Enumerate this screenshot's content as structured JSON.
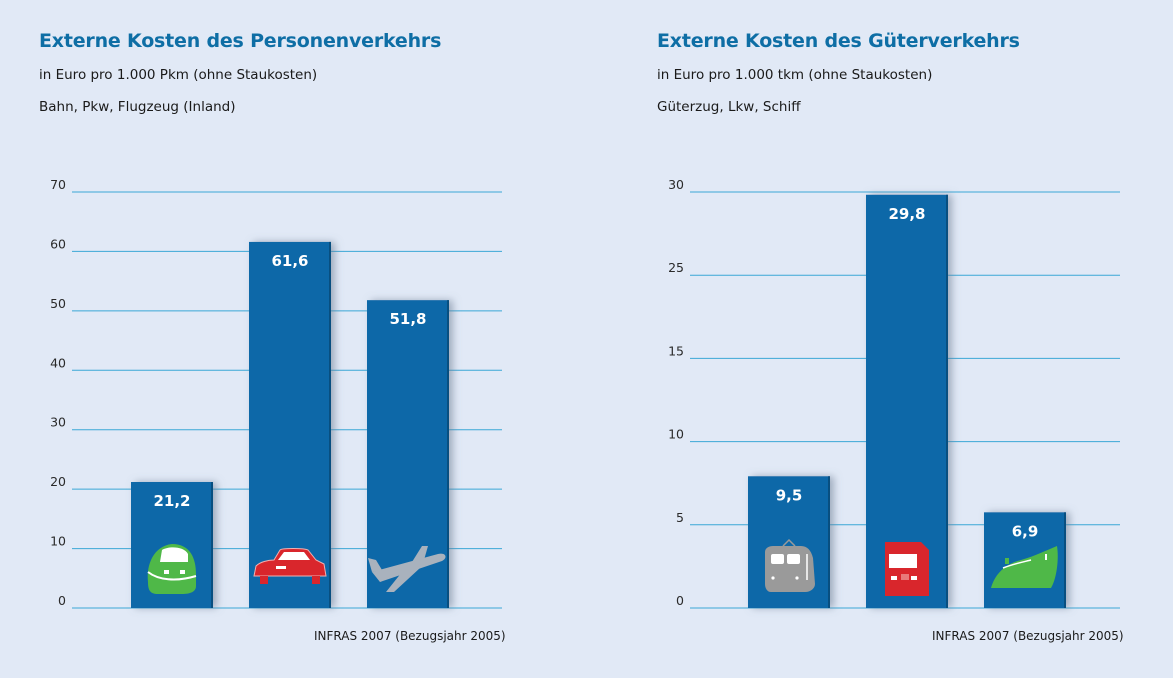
{
  "charts": [
    {
      "title": "Externe Kosten des Personenverkehrs",
      "subtitle": "in Euro pro 1.000 Pkm (ohne Staukosten)",
      "categories_line": "Bahn, Pkw, Flugzeug (Inland)",
      "source": "INFRAS 2007 (Bezugsjahr 2005)",
      "icons": [
        "train-icon",
        "car-icon",
        "airplane-icon"
      ]
    },
    {
      "title": "Externe Kosten des Güterverkehrs",
      "subtitle": "in Euro pro 1.000 tkm (ohne Staukosten)",
      "categories_line": "Güterzug, Lkw, Schiff",
      "source": "INFRAS 2007 (Bezugsjahr 2005)",
      "icons": [
        "freight-train-icon",
        "truck-icon",
        "ship-icon"
      ]
    }
  ],
  "colors": {
    "bar": "#0a68a8",
    "grid": "#3ba7d6",
    "title": "#0e6ea5",
    "background": "#e1e9f6"
  },
  "chart_data": [
    {
      "type": "bar",
      "title": "Externe Kosten des Personenverkehrs",
      "subtitle": "in Euro pro 1.000 Pkm (ohne Staukosten)",
      "categories": [
        "Bahn",
        "Pkw",
        "Flugzeug (Inland)"
      ],
      "values": [
        21.2,
        61.6,
        51.8
      ],
      "value_labels": [
        "21,2",
        "61,6",
        "51,8"
      ],
      "xlabel": "",
      "ylabel": "Euro pro 1.000 Pkm",
      "ylim": [
        0,
        70
      ],
      "yticks": [
        0,
        10,
        20,
        30,
        40,
        50,
        60,
        70
      ],
      "ytick_labels": [
        "0",
        "10",
        "20",
        "30",
        "40",
        "50",
        "60",
        "70"
      ],
      "grid": true,
      "legend": "none",
      "source": "INFRAS 2007 (Bezugsjahr 2005)"
    },
    {
      "type": "bar",
      "title": "Externe Kosten des Güterverkehrs",
      "subtitle": "in Euro pro 1.000 tkm (ohne Staukosten)",
      "categories": [
        "Güterzug",
        "Lkw",
        "Schiff"
      ],
      "values": [
        9.5,
        29.8,
        6.9
      ],
      "value_labels": [
        "9,5",
        "29,8",
        "6,9"
      ],
      "xlabel": "",
      "ylabel": "Euro pro 1.000 tkm",
      "ylim": [
        0,
        30
      ],
      "yticks": [
        0,
        5,
        10,
        15,
        25,
        30
      ],
      "ytick_labels": [
        "0",
        "5",
        "10",
        "15",
        "25",
        "30"
      ],
      "grid": true,
      "legend": "none",
      "source": "INFRAS 2007 (Bezugsjahr 2005)"
    }
  ]
}
